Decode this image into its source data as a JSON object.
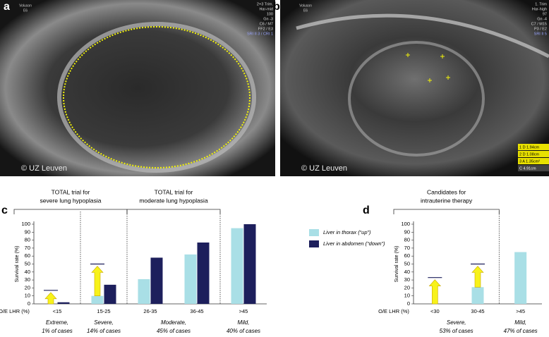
{
  "images": [
    {
      "label": "a",
      "device": [
        "Voluson",
        "E6"
      ],
      "settings": [
        "2+3 Trim.",
        "Har-mid",
        "100",
        "Gn -3",
        "C6 / M7",
        "FF2 / E3",
        "SRI II 3 / CRI 1"
      ],
      "copyright": "© UZ Leuven"
    },
    {
      "label": "b",
      "device": [
        "Voluson",
        "E6"
      ],
      "settings": [
        "1. Trim",
        "Har-high",
        "97",
        "Gn -4",
        "C7 / M15",
        "P3 / E2",
        "SRI II 5"
      ],
      "measurements": [
        "1  D  1.94cm",
        "2  D  1.08cm",
        "3  A  1.35cm²",
        "C  4.91cm"
      ],
      "copyright": "© UZ Leuven"
    }
  ],
  "chart_data": [
    {
      "type": "bar",
      "panel": "c",
      "ylabel": "Survival rate (%)",
      "xlabel": "O/E LHR (%)",
      "categories": [
        "<15",
        "15-25",
        "26-35",
        "36-45",
        ">45"
      ],
      "series": [
        {
          "name": "Liver in thorax (“up”)",
          "color": "#a9dfe6",
          "values": [
            0,
            10,
            31,
            62,
            95
          ],
          "targets": [
            17,
            50,
            null,
            null,
            null
          ]
        },
        {
          "name": "Liver in abdomen (“down”)",
          "color": "#1d1f5c",
          "values": [
            2,
            24,
            58,
            77,
            100
          ]
        }
      ],
      "ylim": [
        0,
        100
      ],
      "yticks": [
        0,
        10,
        20,
        30,
        40,
        50,
        60,
        70,
        80,
        90,
        100
      ],
      "legend": "right",
      "groups": [
        {
          "lines": [
            "Extreme,",
            "1% of cases"
          ],
          "categories": [
            "<15"
          ]
        },
        {
          "lines": [
            "Severe,",
            "14% of cases"
          ],
          "categories": [
            "15-25"
          ]
        },
        {
          "lines": [
            "Moderate,",
            "45% of cases"
          ],
          "categories": [
            "26-35",
            "36-45"
          ]
        },
        {
          "lines": [
            "Mild,",
            "40% of cases"
          ],
          "categories": [
            ">45"
          ]
        }
      ],
      "brackets": [
        {
          "lines": [
            "TOTAL trial for",
            "severe lung hypoplasia"
          ],
          "categories": [
            "<15",
            "15-25"
          ]
        },
        {
          "lines": [
            "TOTAL trial for",
            "moderate lung hypoplasia"
          ],
          "categories": [
            "26-35",
            "36-45"
          ]
        }
      ]
    },
    {
      "type": "bar",
      "panel": "d",
      "ylabel": "Survival rate (%)",
      "xlabel": "O/E LHR (%)",
      "categories": [
        "<30",
        "30-45",
        ">45"
      ],
      "series": [
        {
          "color": "#a9dfe6",
          "values": [
            0,
            21,
            65
          ],
          "targets": [
            33,
            50,
            null
          ]
        }
      ],
      "ylim": [
        0,
        100
      ],
      "yticks": [
        0,
        10,
        20,
        30,
        40,
        50,
        60,
        70,
        80,
        90,
        100
      ],
      "groups": [
        {
          "lines": [
            "Severe,",
            "53% of cases"
          ],
          "categories": [
            "<30",
            "30-45"
          ]
        },
        {
          "lines": [
            "Mild,",
            "47% of cases"
          ],
          "categories": [
            ">45"
          ]
        }
      ],
      "brackets": [
        {
          "lines": [
            "Candidates for",
            "intrauterine therapy"
          ],
          "categories": [
            "<30",
            "30-45"
          ]
        }
      ]
    }
  ]
}
